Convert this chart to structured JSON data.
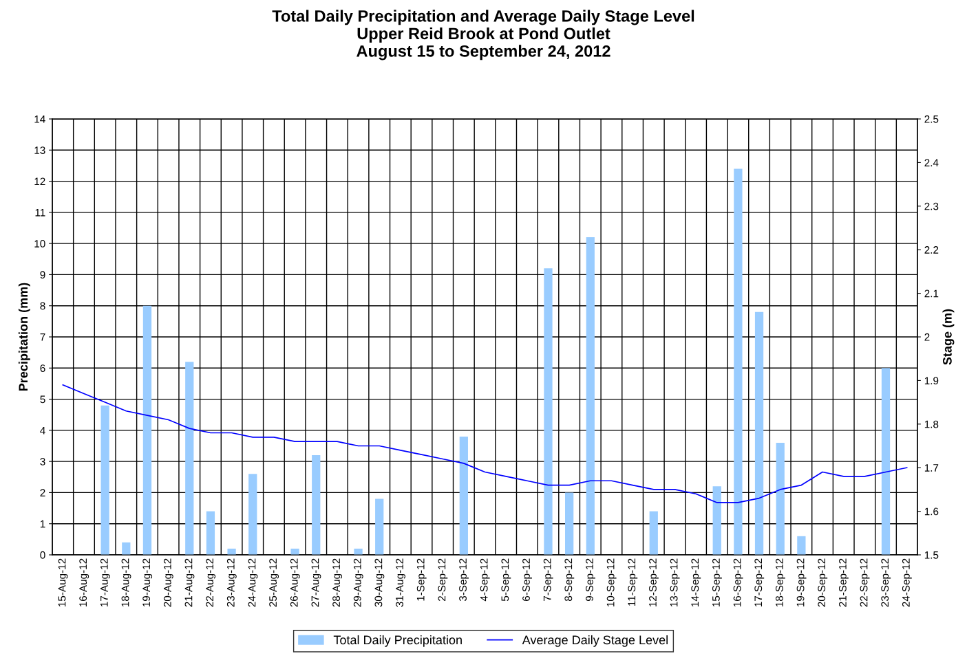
{
  "chart_data": {
    "type": "bar",
    "title": "Total Daily Precipitation and Average Daily Stage Level\nUpper Reid Brook at Pond Outlet\nAugust 15 to September 24, 2012",
    "xlabel": null,
    "ylabel": "Precipitation (mm)",
    "y2label": "Stage (m)",
    "categories": [
      "15-Aug-12",
      "16-Aug-12",
      "17-Aug-12",
      "18-Aug-12",
      "19-Aug-12",
      "20-Aug-12",
      "21-Aug-12",
      "22-Aug-12",
      "23-Aug-12",
      "24-Aug-12",
      "25-Aug-12",
      "26-Aug-12",
      "27-Aug-12",
      "28-Aug-12",
      "29-Aug-12",
      "30-Aug-12",
      "31-Aug-12",
      "1-Sep-12",
      "2-Sep-12",
      "3-Sep-12",
      "4-Sep-12",
      "5-Sep-12",
      "6-Sep-12",
      "7-Sep-12",
      "8-Sep-12",
      "9-Sep-12",
      "10-Sep-12",
      "11-Sep-12",
      "12-Sep-12",
      "13-Sep-12",
      "14-Sep-12",
      "15-Sep-12",
      "16-Sep-12",
      "17-Sep-12",
      "18-Sep-12",
      "19-Sep-12",
      "20-Sep-12",
      "21-Sep-12",
      "22-Sep-12",
      "23-Sep-12",
      "24-Sep-12"
    ],
    "series": [
      {
        "name": "Total Daily Precipitation",
        "color": "#99ccff",
        "values": [
          0,
          0,
          4.8,
          0.4,
          8.0,
          0,
          6.2,
          1.4,
          0.2,
          2.6,
          0,
          0.2,
          3.2,
          0,
          0.2,
          1.8,
          0,
          0,
          0,
          3.8,
          0,
          0,
          0,
          9.2,
          2.0,
          10.2,
          0,
          0,
          1.4,
          0,
          0,
          2.2,
          12.4,
          7.8,
          3.6,
          0.6,
          0,
          0,
          0,
          6.0,
          0
        ]
      },
      {
        "name": "Average Daily Stage Level",
        "type": "line",
        "axis": "y2",
        "color": "#0000ff",
        "values": [
          1.89,
          1.87,
          1.85,
          1.83,
          1.82,
          1.81,
          1.79,
          1.78,
          1.78,
          1.77,
          1.77,
          1.76,
          1.76,
          1.76,
          1.75,
          1.75,
          1.74,
          1.73,
          1.72,
          1.71,
          1.69,
          1.68,
          1.67,
          1.66,
          1.66,
          1.67,
          1.67,
          1.66,
          1.65,
          1.65,
          1.64,
          1.62,
          1.62,
          1.63,
          1.65,
          1.66,
          1.69,
          1.68,
          1.68,
          1.69,
          1.7
        ]
      }
    ],
    "ylim": [
      0,
      14
    ],
    "yticks": [
      0,
      1,
      2,
      3,
      4,
      5,
      6,
      7,
      8,
      9,
      10,
      11,
      12,
      13,
      14
    ],
    "y2lim": [
      1.5,
      2.5
    ],
    "y2ticks": [
      1.5,
      1.6,
      1.7,
      1.8,
      1.9,
      2,
      2.1,
      2.2,
      2.3,
      2.4,
      2.5
    ],
    "grid": true,
    "legend": "bottom",
    "marker": "none",
    "line_style": "solid"
  }
}
